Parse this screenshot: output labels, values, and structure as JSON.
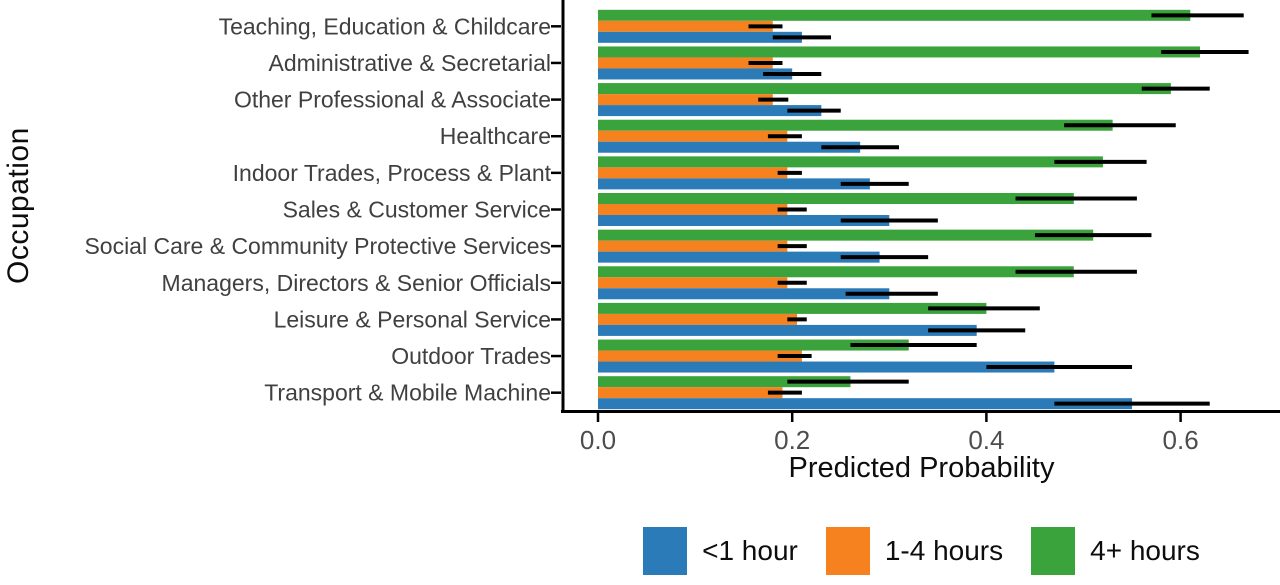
{
  "chart_data": {
    "type": "bar",
    "orientation": "horizontal",
    "xlabel": "Predicted Probability",
    "ylabel": "Occupation",
    "xlim": [
      0,
      0.7
    ],
    "xticks": [
      0.0,
      0.2,
      0.4,
      0.6
    ],
    "grid": false,
    "legend_position": "bottom",
    "error_bars": true,
    "error_bar_color": "#000000",
    "categories": [
      "Teaching, Education & Childcare",
      "Administrative & Secretarial",
      "Other Professional & Associate",
      "Healthcare",
      "Indoor Trades, Process & Plant",
      "Sales & Customer Service",
      "Social Care & Community Protective Services",
      "Managers, Directors & Senior Officials",
      "Leisure & Personal Service",
      "Outdoor Trades",
      "Transport & Mobile Machine"
    ],
    "series": [
      {
        "name": "<1 hour",
        "color": "#2b7bb8",
        "values": [
          0.21,
          0.2,
          0.23,
          0.27,
          0.28,
          0.3,
          0.29,
          0.3,
          0.39,
          0.47,
          0.55
        ],
        "ci_low": [
          0.18,
          0.17,
          0.195,
          0.23,
          0.25,
          0.25,
          0.25,
          0.255,
          0.34,
          0.4,
          0.47
        ],
        "ci_high": [
          0.24,
          0.23,
          0.25,
          0.31,
          0.32,
          0.35,
          0.34,
          0.35,
          0.44,
          0.55,
          0.63
        ]
      },
      {
        "name": "1-4 hours",
        "color": "#f5821f",
        "values": [
          0.18,
          0.18,
          0.18,
          0.195,
          0.195,
          0.195,
          0.195,
          0.195,
          0.205,
          0.21,
          0.19
        ],
        "ci_low": [
          0.155,
          0.155,
          0.165,
          0.175,
          0.185,
          0.185,
          0.185,
          0.185,
          0.195,
          0.185,
          0.175
        ],
        "ci_high": [
          0.19,
          0.19,
          0.196,
          0.21,
          0.21,
          0.215,
          0.215,
          0.215,
          0.215,
          0.22,
          0.21
        ]
      },
      {
        "name": "4+ hours",
        "color": "#3aa33c",
        "values": [
          0.61,
          0.62,
          0.59,
          0.53,
          0.52,
          0.49,
          0.51,
          0.49,
          0.4,
          0.32,
          0.26
        ],
        "ci_low": [
          0.57,
          0.58,
          0.56,
          0.48,
          0.47,
          0.43,
          0.45,
          0.43,
          0.34,
          0.26,
          0.195
        ],
        "ci_high": [
          0.665,
          0.67,
          0.63,
          0.595,
          0.565,
          0.555,
          0.57,
          0.555,
          0.455,
          0.39,
          0.32
        ]
      }
    ],
    "style": {
      "axis_line_color": "#000000",
      "tick_label_color": "#4d4d4d",
      "category_label_color": "#404040"
    }
  }
}
